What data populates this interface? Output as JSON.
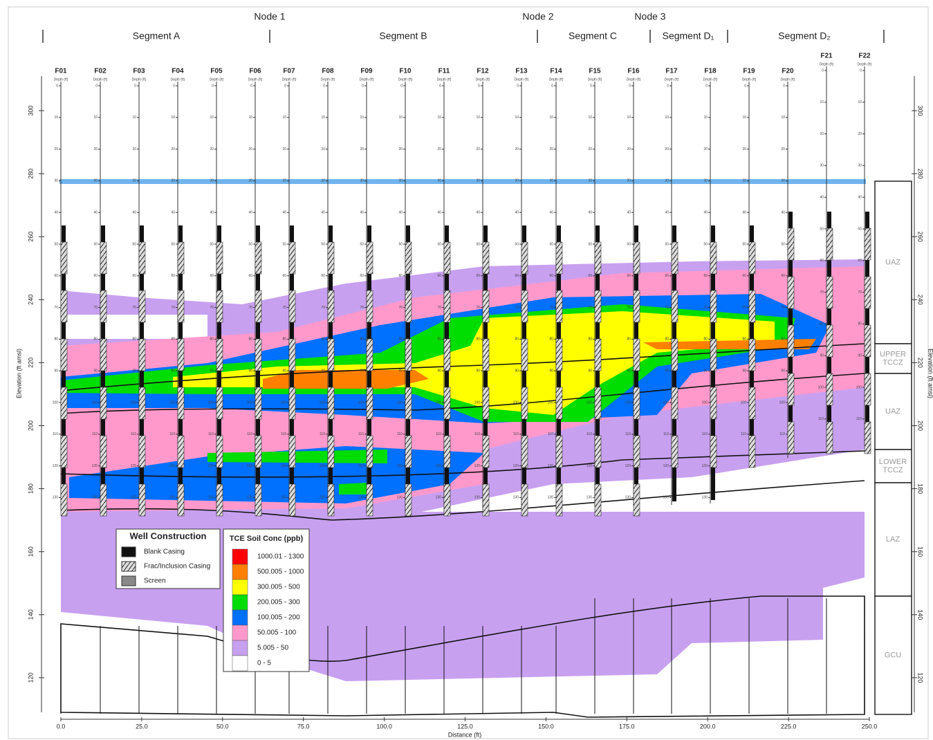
{
  "header": {
    "nodes": [
      "Node 1",
      "Node 2",
      "Node 3"
    ],
    "segments": [
      "Segment A",
      "Segment B",
      "Segment C",
      "Segment D₁",
      "Segment D₂"
    ]
  },
  "wells": [
    "F01",
    "F02",
    "F03",
    "F04",
    "F05",
    "F06",
    "F07",
    "F08",
    "F09",
    "F10",
    "F11",
    "F12",
    "F13",
    "F14",
    "F15",
    "F16",
    "F17",
    "F18",
    "F19",
    "F20",
    "F21",
    "F22"
  ],
  "depth_label": "Depth (ft)",
  "depth_ticks": [
    "0",
    "10",
    "20",
    "30",
    "40",
    "50",
    "60",
    "70",
    "80",
    "90",
    "100",
    "110",
    "120",
    "130"
  ],
  "y_axis": {
    "label": "Elevation (ft amsl)",
    "ticks": [
      "300",
      "280",
      "260",
      "240",
      "220",
      "200",
      "180",
      "160",
      "140",
      "120"
    ]
  },
  "x_axis": {
    "label": "Distance (ft)",
    "ticks": [
      "0.0",
      "25.0",
      "50.0",
      "75.0",
      "100.0",
      "125.0",
      "150.0",
      "175.0",
      "200.0",
      "225.0",
      "250.0"
    ]
  },
  "units": [
    "UAZ",
    "UPPER TCCZ",
    "UAZ",
    "LOWER TCCZ",
    "LAZ",
    "GCU"
  ],
  "well_construction": {
    "title": "Well Construction",
    "items": [
      "Blank Casing",
      "Frac/Inclusion Casing",
      "Screen"
    ]
  },
  "tce_legend": {
    "title": "TCE Soil Conc (ppb)",
    "items": [
      {
        "label": "1000.01 - 1300",
        "color": "#ff0000"
      },
      {
        "label": "500.005 - 1000",
        "color": "#ff8000"
      },
      {
        "label": "300.005 - 500",
        "color": "#ffff00"
      },
      {
        "label": "200.005 - 300",
        "color": "#00dd00"
      },
      {
        "label": "100.005 - 200",
        "color": "#0070ff"
      },
      {
        "label": "50.005 - 100",
        "color": "#ff99cc"
      },
      {
        "label": "5.005 - 50",
        "color": "#c8a0f0"
      },
      {
        "label": "0 - 5",
        "color": "#ffffff"
      }
    ]
  }
}
